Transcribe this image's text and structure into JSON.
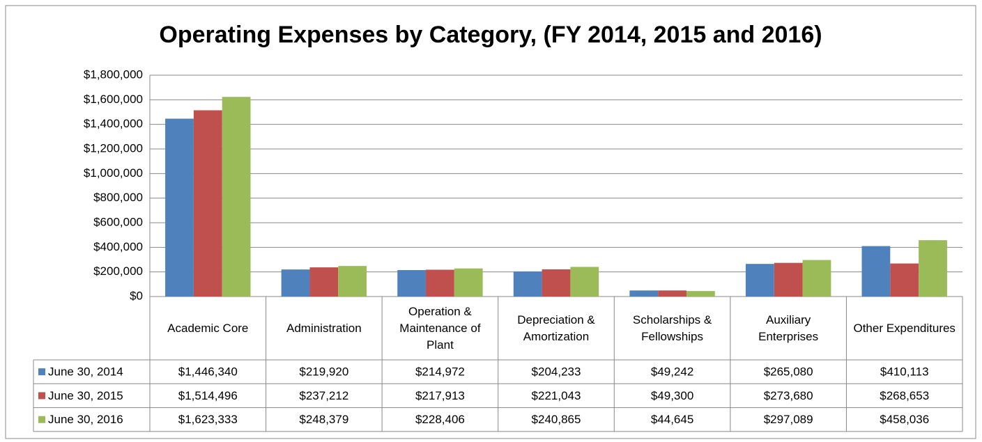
{
  "chart_data": {
    "type": "bar",
    "title": "Operating Expenses by Category, (FY 2014, 2015 and 2016)",
    "categories": [
      "Academic Core",
      "Administration",
      "Operation & Maintenance of Plant",
      "Depreciation & Amortization",
      "Scholarships & Fellowships",
      "Auxiliary Enterprises",
      "Other Expenditures"
    ],
    "series": [
      {
        "name": "June 30, 2014",
        "color": "#4f81bd",
        "values": [
          1446340,
          219920,
          214972,
          204233,
          49242,
          265080,
          410113
        ],
        "value_labels": [
          "$1,446,340",
          "$219,920",
          "$214,972",
          "$204,233",
          "$49,242",
          "$265,080",
          "$410,113"
        ]
      },
      {
        "name": "June 30, 2015",
        "color": "#c0504d",
        "values": [
          1514496,
          237212,
          217913,
          221043,
          49300,
          273680,
          268653
        ],
        "value_labels": [
          "$1,514,496",
          "$237,212",
          "$217,913",
          "$221,043",
          "$49,300",
          "$273,680",
          "$268,653"
        ]
      },
      {
        "name": "June 30, 2016",
        "color": "#9bbb59",
        "values": [
          1623333,
          248379,
          228406,
          240865,
          44645,
          297089,
          458036
        ],
        "value_labels": [
          "$1,623,333",
          "$248,379",
          "$228,406",
          "$240,865",
          "$44,645",
          "$297,089",
          "$458,036"
        ]
      }
    ],
    "ylim": [
      0,
      1800000
    ],
    "yticks": [
      {
        "value": 0,
        "label": "$0"
      },
      {
        "value": 200000,
        "label": "$200,000"
      },
      {
        "value": 400000,
        "label": "$400,000"
      },
      {
        "value": 600000,
        "label": "$600,000"
      },
      {
        "value": 800000,
        "label": "$800,000"
      },
      {
        "value": 1000000,
        "label": "$1,000,000"
      },
      {
        "value": 1200000,
        "label": "$1,200,000"
      },
      {
        "value": 1400000,
        "label": "$1,400,000"
      },
      {
        "value": 1600000,
        "label": "$1,600,000"
      },
      {
        "value": 1800000,
        "label": "$1,800,000"
      }
    ],
    "grid": true
  }
}
